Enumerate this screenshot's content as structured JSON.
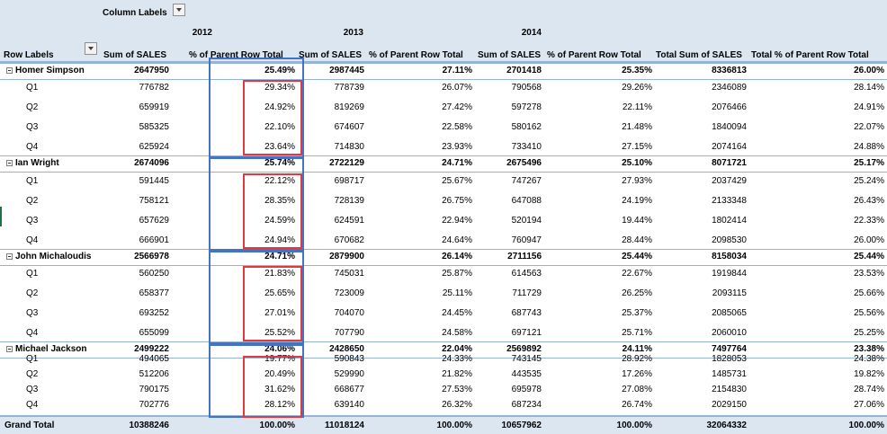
{
  "header": {
    "column_labels": "Column Labels",
    "row_labels": "Row Labels",
    "years": [
      "2012",
      "2013",
      "2014"
    ],
    "sum_of_sales": "Sum of SALES",
    "pct_parent_row_total": "% of Parent Row Total",
    "total_sum_sales": "Total Sum of SALES",
    "total_pct_parent": "Total % of Parent Row Total"
  },
  "groups": [
    {
      "name": "Homer Simpson",
      "values": [
        "2647950",
        "25.49%",
        "2987445",
        "27.11%",
        "2701418",
        "25.35%",
        "8336813",
        "26.00%"
      ],
      "quarters": [
        {
          "label": "Q1",
          "values": [
            "776782",
            "29.34%",
            "778739",
            "26.07%",
            "790568",
            "29.26%",
            "2346089",
            "28.14%"
          ]
        },
        {
          "label": "Q2",
          "values": [
            "659919",
            "24.92%",
            "819269",
            "27.42%",
            "597278",
            "22.11%",
            "2076466",
            "24.91%"
          ]
        },
        {
          "label": "Q3",
          "values": [
            "585325",
            "22.10%",
            "674607",
            "22.58%",
            "580162",
            "21.48%",
            "1840094",
            "22.07%"
          ]
        },
        {
          "label": "Q4",
          "values": [
            "625924",
            "23.64%",
            "714830",
            "23.93%",
            "733410",
            "27.15%",
            "2074164",
            "24.88%"
          ]
        }
      ]
    },
    {
      "name": "Ian Wright",
      "values": [
        "2674096",
        "25.74%",
        "2722129",
        "24.71%",
        "2675496",
        "25.10%",
        "8071721",
        "25.17%"
      ],
      "quarters": [
        {
          "label": "Q1",
          "values": [
            "591445",
            "22.12%",
            "698717",
            "25.67%",
            "747267",
            "27.93%",
            "2037429",
            "25.24%"
          ]
        },
        {
          "label": "Q2",
          "values": [
            "758121",
            "28.35%",
            "728139",
            "26.75%",
            "647088",
            "24.19%",
            "2133348",
            "26.43%"
          ]
        },
        {
          "label": "Q3",
          "values": [
            "657629",
            "24.59%",
            "624591",
            "22.94%",
            "520194",
            "19.44%",
            "1802414",
            "22.33%"
          ]
        },
        {
          "label": "Q4",
          "values": [
            "666901",
            "24.94%",
            "670682",
            "24.64%",
            "760947",
            "28.44%",
            "2098530",
            "26.00%"
          ]
        }
      ]
    },
    {
      "name": "John Michaloudis",
      "values": [
        "2566978",
        "24.71%",
        "2879900",
        "26.14%",
        "2711156",
        "25.44%",
        "8158034",
        "25.44%"
      ],
      "quarters": [
        {
          "label": "Q1",
          "values": [
            "560250",
            "21.83%",
            "745031",
            "25.87%",
            "614563",
            "22.67%",
            "1919844",
            "23.53%"
          ]
        },
        {
          "label": "Q2",
          "values": [
            "658377",
            "25.65%",
            "723009",
            "25.11%",
            "711729",
            "26.25%",
            "2093115",
            "25.66%"
          ]
        },
        {
          "label": "Q3",
          "values": [
            "693252",
            "27.01%",
            "704070",
            "24.45%",
            "687743",
            "25.37%",
            "2085065",
            "25.56%"
          ]
        },
        {
          "label": "Q4",
          "values": [
            "655099",
            "25.52%",
            "707790",
            "24.58%",
            "697121",
            "25.71%",
            "2060010",
            "25.25%"
          ]
        }
      ]
    },
    {
      "name": "Michael Jackson",
      "values": [
        "2499222",
        "24.06%",
        "2428650",
        "22.04%",
        "2569892",
        "24.11%",
        "7497764",
        "23.38%"
      ],
      "quarters": [
        {
          "label": "Q1",
          "values": [
            "494065",
            "19.77%",
            "590843",
            "24.33%",
            "743145",
            "28.92%",
            "1828053",
            "24.38%"
          ]
        },
        {
          "label": "Q2",
          "values": [
            "512206",
            "20.49%",
            "529990",
            "21.82%",
            "443535",
            "17.26%",
            "1485731",
            "19.82%"
          ]
        },
        {
          "label": "Q3",
          "values": [
            "790175",
            "31.62%",
            "668677",
            "27.53%",
            "695978",
            "27.08%",
            "2154830",
            "28.74%"
          ]
        },
        {
          "label": "Q4",
          "values": [
            "702776",
            "28.12%",
            "639140",
            "26.32%",
            "687234",
            "26.74%",
            "2029150",
            "27.06%"
          ]
        }
      ]
    }
  ],
  "grand_total": {
    "label": "Grand Total",
    "values": [
      "10388246",
      "100.00%",
      "11018124",
      "100.00%",
      "10657962",
      "100.00%",
      "32064332",
      "100.00%"
    ]
  },
  "colors": {
    "header_bg": "#dce6f1",
    "blue_highlight": "#4472c4",
    "red_highlight": "#e0393e"
  }
}
